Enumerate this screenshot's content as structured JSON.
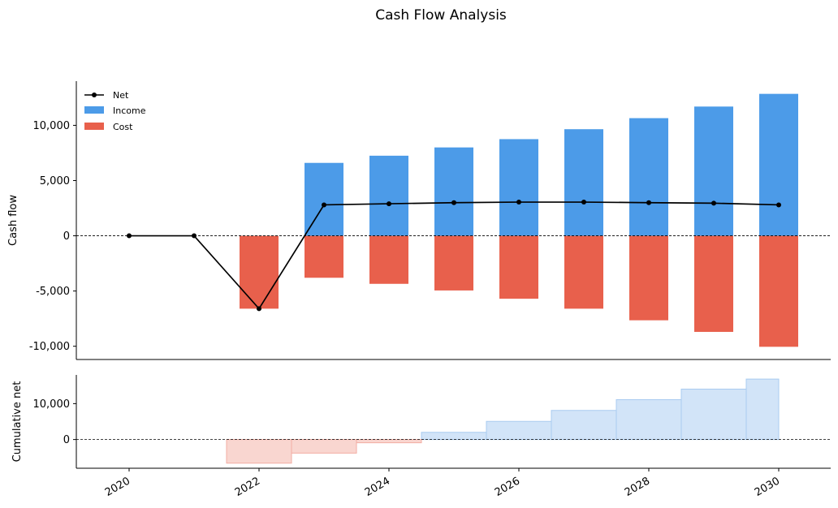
{
  "chart_data": {
    "type": "bar",
    "title": "Cash Flow Analysis",
    "colors": {
      "income": "#4C9BE8",
      "cost": "#E8604C",
      "net": "#000000",
      "cum_pos": "#D2E4F8",
      "cum_pos_line": "#A9CBF0",
      "cum_neg": "#F9D6D0",
      "cum_neg_line": "#F2ADA3"
    },
    "panels": [
      {
        "name": "cash-flow",
        "ylabel": "Cash flow",
        "ylim": [
          -11200,
          14000
        ],
        "yticks": [
          -10000,
          -5000,
          0,
          5000,
          10000
        ],
        "ytick_labels": [
          "-10,000",
          "-5,000",
          "0",
          "5,000",
          "10,000"
        ],
        "legend": {
          "placement": "top-left",
          "entries": [
            "Net",
            "Income",
            "Cost"
          ]
        },
        "x": [
          2020,
          2021,
          2022,
          2023,
          2024,
          2025,
          2026,
          2027,
          2028,
          2029,
          2030
        ],
        "series": [
          {
            "name": "Income",
            "type": "bar",
            "values": [
              0,
              0,
              0,
              6600,
              7250,
              8000,
              8750,
              9650,
              10650,
              11700,
              12850
            ]
          },
          {
            "name": "Cost",
            "type": "bar",
            "values": [
              0,
              0,
              -6600,
              -3800,
              -4350,
              -4950,
              -5700,
              -6600,
              -7650,
              -8700,
              -10050
            ]
          },
          {
            "name": "Net",
            "type": "line",
            "values": [
              0,
              0,
              -6600,
              2800,
              2900,
              3000,
              3050,
              3050,
              3000,
              2950,
              2800
            ]
          }
        ]
      },
      {
        "name": "cumulative-net",
        "ylabel": "Cumulative net",
        "ylim": [
          -8000,
          18000
        ],
        "yticks": [
          0,
          10000
        ],
        "ytick_labels": [
          "0",
          "10,000"
        ],
        "x": [
          2020,
          2021,
          2022,
          2023,
          2024,
          2025,
          2026,
          2027,
          2028,
          2029,
          2030
        ],
        "values": [
          0,
          0,
          -6600,
          -3800,
          -900,
          2000,
          5050,
          8100,
          11100,
          14050,
          16850
        ]
      }
    ],
    "xticks": [
      2020,
      2022,
      2024,
      2026,
      2028,
      2030
    ],
    "xtick_labels": [
      "2020",
      "2022",
      "2024",
      "2026",
      "2028",
      "2030"
    ],
    "grid": false
  }
}
